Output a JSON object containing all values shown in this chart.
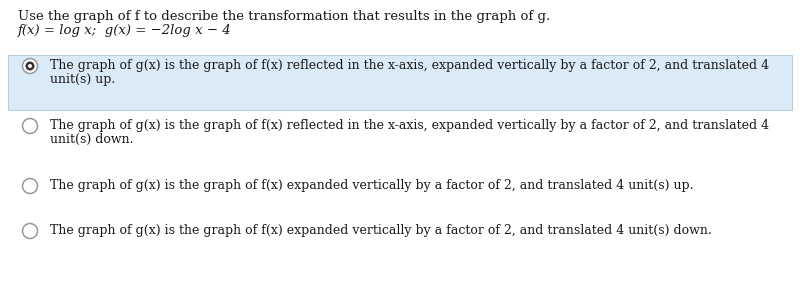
{
  "background_color": "#ffffff",
  "question_line1": "Use the graph of f to describe the transformation that results in the graph of g.",
  "question_line2": "f(x) = log x;  g(x) = −2log x − 4",
  "options": [
    {
      "text_line1": "The graph of g(x) is the graph of f(x) reflected in the x-axis, expanded vertically by a factor of 2, and translated 4",
      "text_line2": "unit(s) up.",
      "selected": true,
      "highlight": true
    },
    {
      "text_line1": "The graph of g(x) is the graph of f(x) reflected in the x-axis, expanded vertically by a factor of 2, and translated 4",
      "text_line2": "unit(s) down.",
      "selected": false,
      "highlight": false
    },
    {
      "text_line1": "The graph of g(x) is the graph of f(x) expanded vertically by a factor of 2, and translated 4 unit(s) up.",
      "text_line2": null,
      "selected": false,
      "highlight": false
    },
    {
      "text_line1": "The graph of g(x) is the graph of f(x) expanded vertically by a factor of 2, and translated 4 unit(s) down.",
      "text_line2": null,
      "selected": false,
      "highlight": false
    }
  ],
  "highlight_color": "#daeaf7",
  "highlight_border_color": "#b0cce0",
  "radio_outer_color": "#999999",
  "radio_selected_fill": "#333333",
  "text_color": "#1a1a1a",
  "font_size_question": 9.5,
  "font_size_option": 9.0
}
